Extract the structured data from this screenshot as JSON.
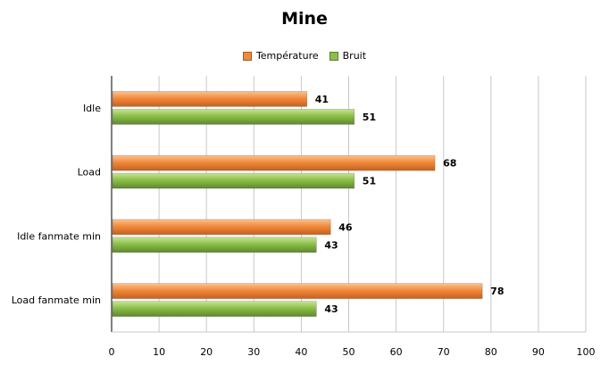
{
  "chart_data": {
    "type": "bar",
    "orientation": "horizontal",
    "title": "Mine",
    "xlabel": "",
    "ylabel": "",
    "categories": [
      "Idle",
      "Load",
      "Idle fanmate  min",
      "Load fanmate  min"
    ],
    "series": [
      {
        "name": "Température",
        "color": "#f08a3c",
        "values": [
          41,
          68,
          46,
          78
        ]
      },
      {
        "name": "Bruit",
        "color": "#8cbf4a",
        "values": [
          51,
          51,
          43,
          43
        ]
      }
    ],
    "xlim": [
      0,
      100
    ],
    "ticks": [
      0,
      10,
      20,
      30,
      40,
      50,
      60,
      70,
      80,
      90,
      100
    ],
    "grid": true,
    "legend_position": "top"
  }
}
